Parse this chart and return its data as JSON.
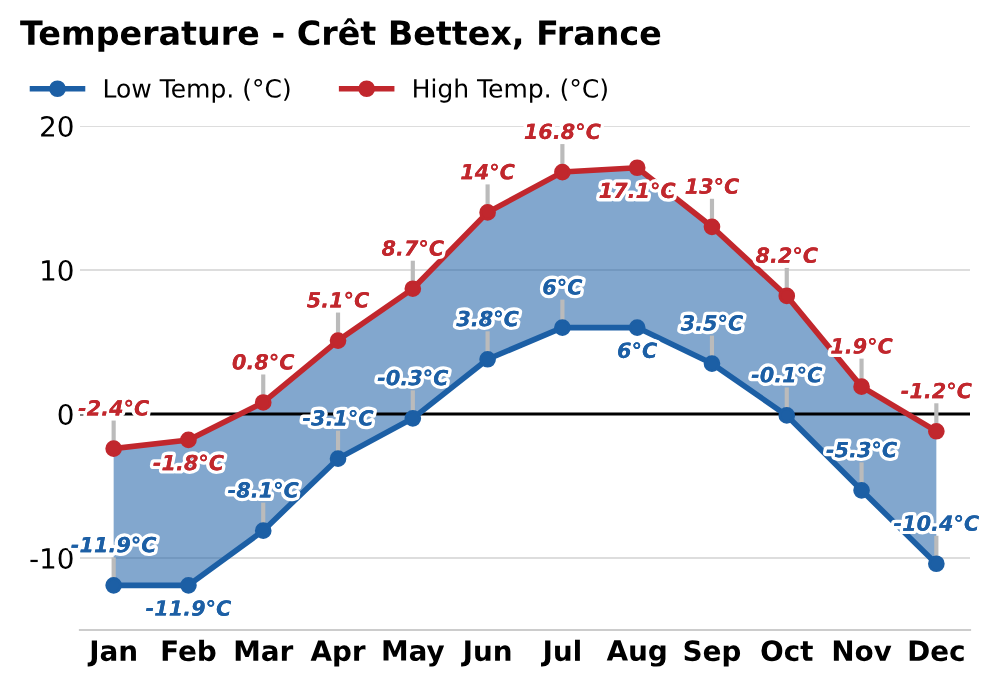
{
  "chart_data": {
    "type": "line",
    "title": "Temperature - Crêt Bettex, France",
    "categories": [
      "Jan",
      "Feb",
      "Mar",
      "Apr",
      "May",
      "Jun",
      "Jul",
      "Aug",
      "Sep",
      "Oct",
      "Nov",
      "Dec"
    ],
    "series": [
      {
        "name": "Low Temp. (°C)",
        "color": "#1c5fa5",
        "values": [
          -11.9,
          -11.9,
          -8.1,
          -3.1,
          -0.3,
          3.8,
          6,
          6,
          3.5,
          -0.1,
          -5.3,
          -10.4
        ],
        "value_labels": [
          "-11.9°C",
          "-11.9°C",
          "-8.1°C",
          "-3.1°C",
          "-0.3°C",
          "3.8°C",
          "6°C",
          "6°C",
          "3.5°C",
          "-0.1°C",
          "-5.3°C",
          "-10.4°C"
        ],
        "lower": [
          -11.9,
          -11.9,
          -8.1,
          -3.1,
          -0.3,
          3.8,
          6,
          6,
          3.5,
          -0.1,
          -5.3,
          -10.4
        ],
        "upper": [
          -2.4,
          -1.8,
          0.8,
          5.1,
          8.7,
          14,
          16.8,
          17.1,
          13,
          8.2,
          1.9,
          -1.2
        ]
      },
      {
        "name": "High Temp. (°C)",
        "color": "#c1272d",
        "values": [
          -2.4,
          -1.8,
          0.8,
          5.1,
          8.7,
          14,
          16.8,
          17.1,
          13,
          8.2,
          1.9,
          -1.2
        ],
        "value_labels": [
          "-2.4°C",
          "-1.8°C",
          "0.8°C",
          "5.1°C",
          "8.7°C",
          "14°C",
          "16.8°C",
          "17.1°C",
          "13°C",
          "8.2°C",
          "1.9°C",
          "-1.2°C"
        ]
      }
    ],
    "ylim": [
      -15,
      20
    ],
    "yticks": [
      -10,
      0,
      10,
      20
    ],
    "grid": "y",
    "legend": "top left",
    "marker": "circle",
    "line_style": "solid",
    "ref_lines": [
      {
        "axis": "y",
        "value": 0,
        "color": "#000000"
      }
    ]
  }
}
